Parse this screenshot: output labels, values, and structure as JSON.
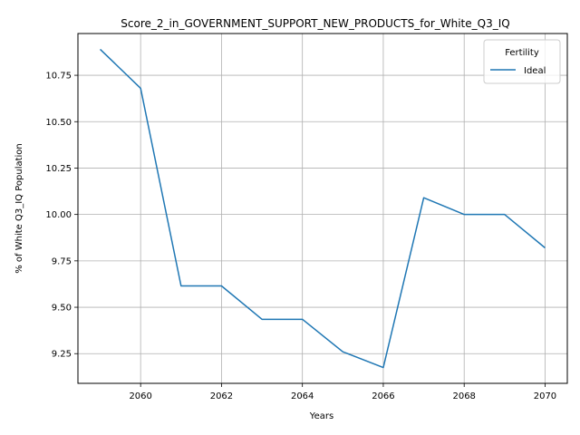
{
  "chart_data": {
    "type": "line",
    "title": "Score_2_in_GOVERNMENT_SUPPORT_NEW_PRODUCTS_for_White_Q3_IQ",
    "xlabel": "Years",
    "ylabel": "% of White Q3_IQ Population",
    "xlim": [
      2058.45,
      2070.55
    ],
    "ylim": [
      9.09,
      10.975
    ],
    "xticks": [
      2060,
      2062,
      2064,
      2066,
      2068,
      2070
    ],
    "yticks": [
      9.25,
      9.5,
      9.75,
      10.0,
      10.25,
      10.5,
      10.75
    ],
    "ytick_labels": [
      "9.25",
      "9.50",
      "9.75",
      "10.00",
      "10.25",
      "10.50",
      "10.75"
    ],
    "grid": true,
    "legend": {
      "title": "Fertility",
      "placement": "top-right"
    },
    "series": [
      {
        "name": "Ideal",
        "color": "#1f77b4",
        "x": [
          2059,
          2060,
          2061,
          2062,
          2063,
          2064,
          2065,
          2066,
          2067,
          2068,
          2069,
          2070
        ],
        "y": [
          10.89,
          10.68,
          9.615,
          9.615,
          9.435,
          9.435,
          9.26,
          9.175,
          10.09,
          10.0,
          10.0,
          9.82
        ]
      }
    ]
  }
}
